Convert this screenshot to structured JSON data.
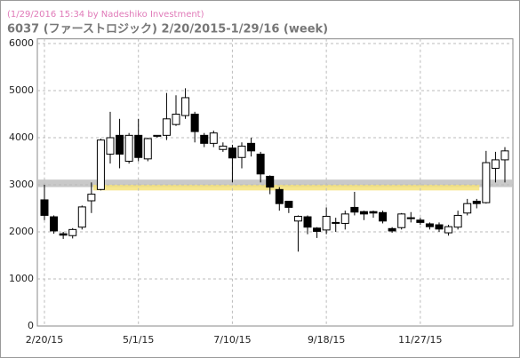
{
  "chart_data": {
    "type": "candlestick",
    "annotation": "(1/29/2016 15:34 by Nadeshiko Investment)",
    "title": "6037 (ファーストロジック)  2/20/2015-1/29/16 (week)",
    "categories": [
      "2/20/15",
      null,
      null,
      null,
      null,
      null,
      null,
      null,
      null,
      null,
      "5/1/15",
      null,
      null,
      null,
      null,
      null,
      null,
      null,
      null,
      null,
      "7/10/15",
      null,
      null,
      null,
      null,
      null,
      null,
      null,
      null,
      null,
      "9/18/15",
      null,
      null,
      null,
      null,
      null,
      null,
      null,
      null,
      null,
      "11/27/15",
      null,
      null,
      null,
      null,
      null,
      null,
      null,
      null,
      null
    ],
    "series": [
      {
        "up_color": "#ffffff",
        "down_color": "#000000",
        "open": [
          2680,
          2320,
          1960,
          1920,
          2100,
          2660,
          2900,
          3650,
          4050,
          3500,
          4050,
          3550,
          4030,
          4050,
          4280,
          4470,
          4500,
          4050,
          3880,
          3750,
          3780,
          3580,
          3880,
          3650,
          3180,
          2900,
          2650,
          2230,
          2320,
          2080,
          2040,
          2200,
          2180,
          2520,
          2430,
          2430,
          2410,
          2070,
          2090,
          2300,
          2250,
          2170,
          2150,
          1980,
          2100,
          2400,
          2650,
          2620,
          3350,
          3530
        ],
        "high": [
          3000,
          2350,
          2000,
          2080,
          2560,
          3050,
          3980,
          4550,
          4400,
          4100,
          4400,
          4000,
          4050,
          4950,
          4900,
          5050,
          4550,
          4100,
          4150,
          3900,
          3850,
          3900,
          4000,
          3700,
          3200,
          2950,
          2650,
          2350,
          2350,
          2100,
          2520,
          2300,
          2450,
          2850,
          2450,
          2450,
          2450,
          2100,
          2400,
          2420,
          2300,
          2200,
          2200,
          2150,
          2450,
          2700,
          2700,
          3720,
          3700,
          3800
        ],
        "low": [
          2250,
          1960,
          1850,
          1860,
          2050,
          2400,
          2880,
          3450,
          3350,
          3450,
          3500,
          3500,
          4000,
          3950,
          4250,
          4400,
          3900,
          3800,
          3800,
          3700,
          3050,
          3350,
          3600,
          3050,
          2800,
          2450,
          2400,
          1580,
          1950,
          1870,
          1950,
          2000,
          2050,
          2350,
          2250,
          2300,
          2180,
          1980,
          2050,
          2200,
          2150,
          2050,
          2000,
          1920,
          2050,
          2350,
          2500,
          2600,
          3050,
          3050
        ],
        "close": [
          2350,
          2020,
          1930,
          2050,
          2530,
          2800,
          3950,
          4000,
          3650,
          4050,
          3580,
          3980,
          4050,
          4400,
          4500,
          4850,
          4130,
          3880,
          4100,
          3820,
          3570,
          3820,
          3720,
          3230,
          2950,
          2600,
          2520,
          2330,
          2100,
          2010,
          2330,
          2180,
          2380,
          2420,
          2380,
          2400,
          2230,
          2020,
          2380,
          2280,
          2200,
          2110,
          2060,
          2110,
          2350,
          2600,
          2600,
          3470,
          3530,
          3720
        ]
      }
    ],
    "bands": [
      {
        "from": 2950,
        "to": 3110,
        "color": "#c0c0c0"
      },
      {
        "from": 2880,
        "to": 3000,
        "color": "#f5e27a"
      }
    ],
    "ylim": [
      0,
      6100
    ],
    "yticks": [
      0,
      1000,
      2000,
      3000,
      4000,
      5000,
      6000
    ],
    "grid": true
  }
}
